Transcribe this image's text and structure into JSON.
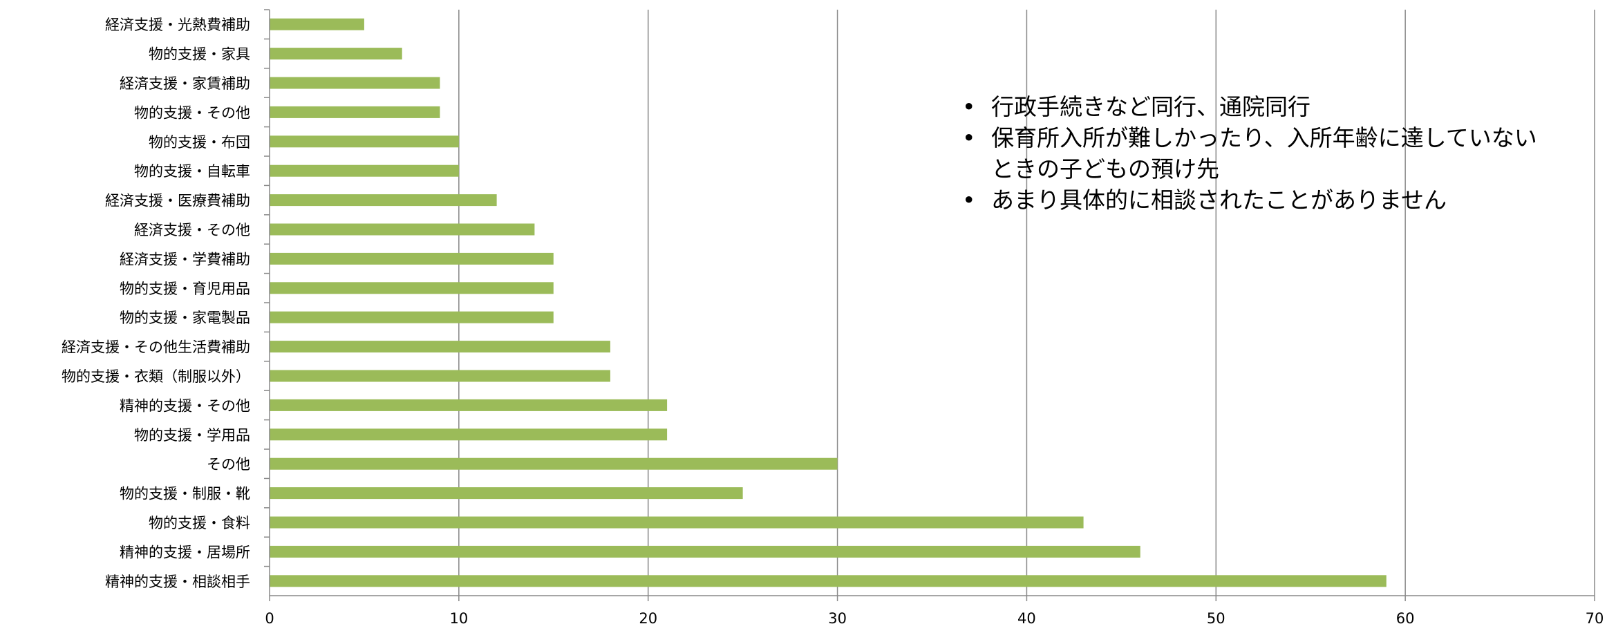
{
  "chart_data": {
    "type": "bar",
    "orientation": "horizontal",
    "categories": [
      "経済支援・光熱費補助",
      "物的支援・家具",
      "経済支援・家賃補助",
      "物的支援・その他",
      "物的支援・布団",
      "物的支援・自転車",
      "経済支援・医療費補助",
      "経済支援・その他",
      "経済支援・学費補助",
      "物的支援・育児用品",
      "物的支援・家電製品",
      "経済支援・その他生活費補助",
      "物的支援・衣類（制服以外）",
      "精神的支援・その他",
      "物的支援・学用品",
      "その他",
      "物的支援・制服・靴",
      "物的支援・食料",
      "精神的支援・居場所",
      "精神的支援・相談相手"
    ],
    "values": [
      5,
      7,
      9,
      9,
      10,
      10,
      12,
      14,
      15,
      15,
      15,
      18,
      18,
      21,
      21,
      30,
      25,
      43,
      46,
      59
    ],
    "x_ticks": [
      "0",
      "10",
      "20",
      "30",
      "40",
      "50",
      "60",
      "70"
    ],
    "xlim": [
      0,
      70
    ],
    "grid": "vertical",
    "legend": "none",
    "bar_color": "#9bbb59",
    "title": "",
    "xlabel": "",
    "ylabel": ""
  },
  "annotations": [
    "行政手続きなど同行、通院同行",
    "保育所入所が難しかったり、入所年齢に達していないときの子どもの預け先",
    "あまり具体的に相談されたことがありません"
  ]
}
